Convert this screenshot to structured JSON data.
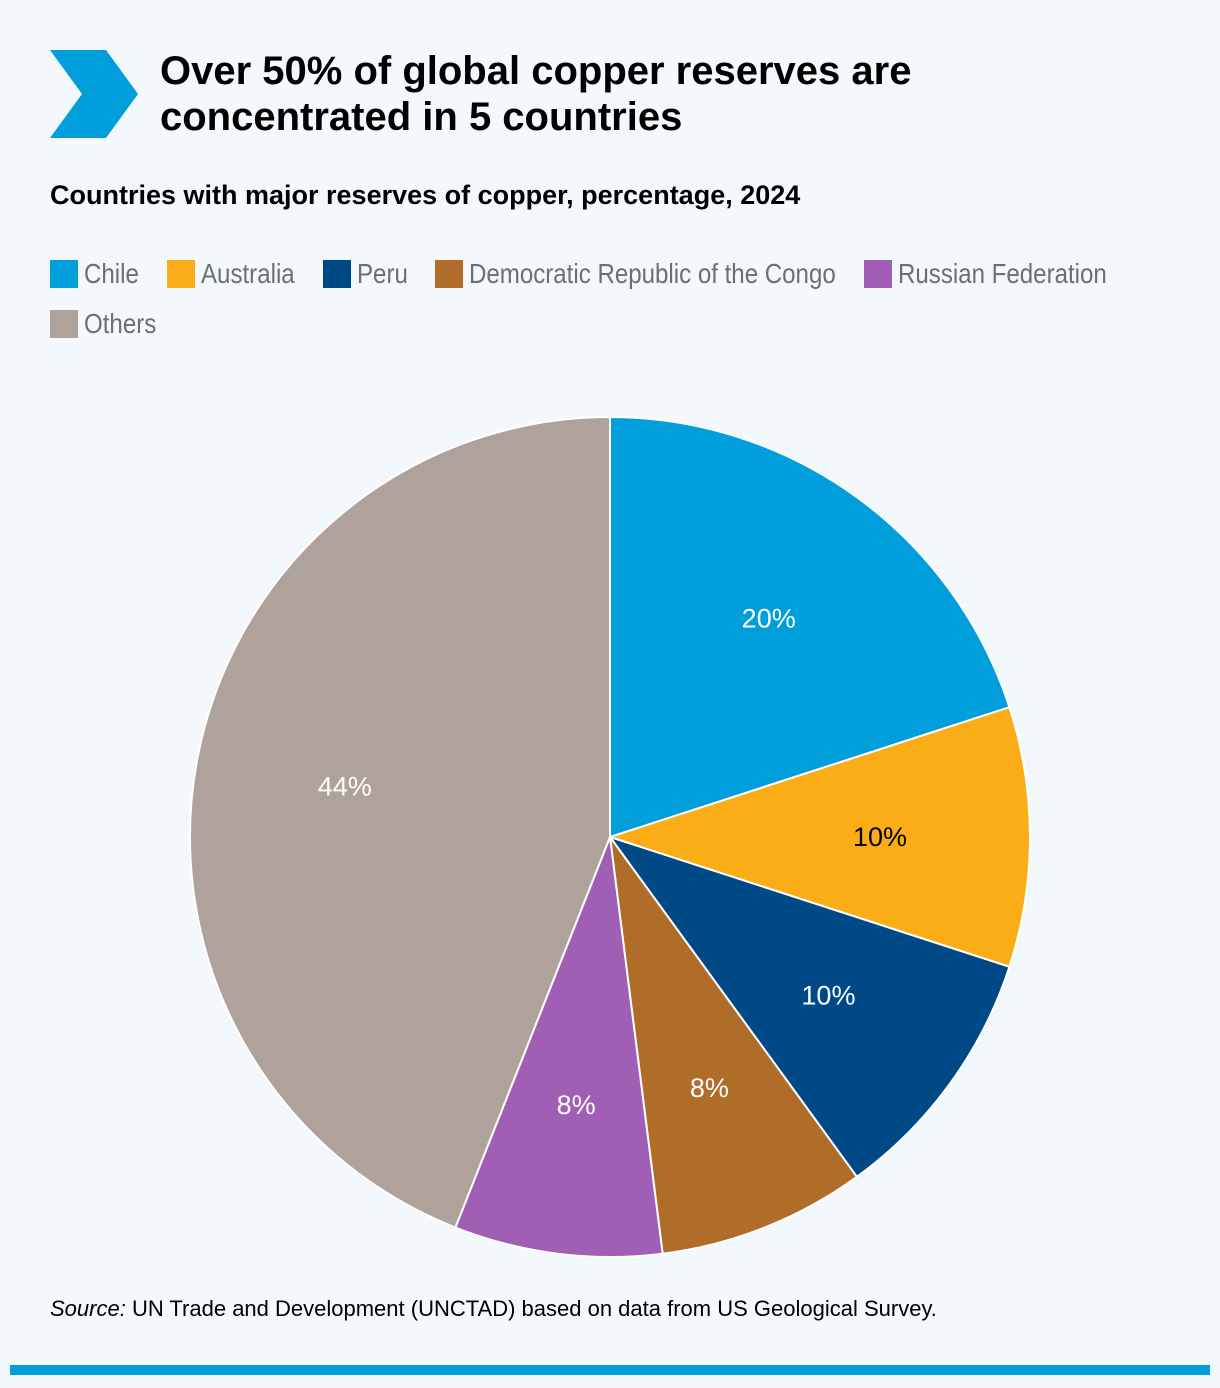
{
  "header": {
    "title_line1": "Over 50% of global copper reserves are",
    "title_line2": "concentrated in 5 countries",
    "subtitle": "Countries with major reserves of copper, percentage, 2024"
  },
  "colors": {
    "accent": "#009edb",
    "background": "#f3f8fc"
  },
  "legend": [
    {
      "label": "Chile",
      "color": "#009edb"
    },
    {
      "label": "Australia",
      "color": "#fbad18"
    },
    {
      "label": "Peru",
      "color": "#004987"
    },
    {
      "label": "Democratic Republic of the Congo",
      "color": "#b06d29"
    },
    {
      "label": "Russian Federation",
      "color": "#a05fb4"
    },
    {
      "label": "Others",
      "color": "#aea29a"
    }
  ],
  "chart_data": {
    "type": "pie",
    "title": "Countries with major reserves of copper, percentage, 2024",
    "categories": [
      "Chile",
      "Australia",
      "Peru",
      "Democratic Republic of the Congo",
      "Russian Federation",
      "Others"
    ],
    "values": [
      20,
      10,
      10,
      8,
      8,
      44
    ],
    "data_labels": [
      "20%",
      "10%",
      "10%",
      "8%",
      "8%",
      "44%"
    ],
    "colors": [
      "#009edb",
      "#fbad18",
      "#004987",
      "#b06d29",
      "#a05fb4",
      "#aea29a"
    ],
    "label_colors": [
      "#ffffff",
      "#000000",
      "#ffffff",
      "#ffffff",
      "#ffffff",
      "#ffffff"
    ],
    "start": "12 o'clock",
    "direction": "clockwise"
  },
  "footer": {
    "source_label": "Source:",
    "source_text": " UN Trade and Development (UNCTAD) based on data from US Geological Survey."
  }
}
